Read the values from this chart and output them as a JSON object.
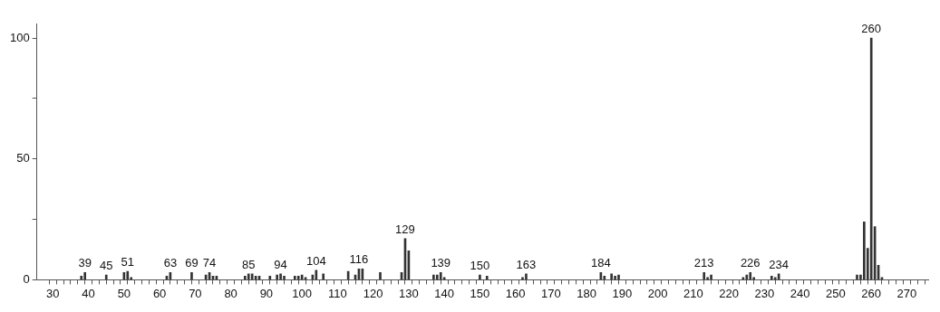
{
  "chart_data": {
    "type": "bar",
    "x": [
      38,
      39,
      45,
      50,
      51,
      52,
      62,
      63,
      69,
      73,
      74,
      75,
      76,
      84,
      85,
      86,
      87,
      88,
      91,
      93,
      94,
      95,
      98,
      99,
      100,
      101,
      103,
      104,
      106,
      113,
      115,
      116,
      117,
      122,
      128,
      129,
      130,
      137,
      138,
      139,
      140,
      150,
      152,
      162,
      163,
      184,
      185,
      187,
      188,
      189,
      213,
      214,
      215,
      224,
      225,
      226,
      227,
      232,
      233,
      234,
      256,
      257,
      258,
      259,
      260,
      261,
      262,
      263
    ],
    "values": [
      1.5,
      3,
      2,
      3,
      3.5,
      1,
      1.5,
      3,
      3,
      2,
      3,
      1.5,
      1.5,
      1.5,
      2.5,
      2.5,
      1.5,
      1.5,
      1.5,
      2,
      2.5,
      1.5,
      1.5,
      1.5,
      2,
      1,
      2,
      4,
      2.5,
      3.5,
      2,
      4.5,
      4.5,
      3,
      3,
      17,
      12,
      2,
      2,
      3,
      1,
      2,
      1.5,
      1,
      2.5,
      3,
      1.5,
      2.5,
      1.5,
      2,
      3,
      1,
      2,
      1,
      2,
      3,
      1,
      1.5,
      1,
      2.5,
      2,
      2,
      24,
      13,
      100,
      22,
      6,
      1
    ],
    "color": "#333333",
    "xlim": [
      25.5,
      276
    ],
    "ylim": [
      0,
      106
    ],
    "yticks": [
      0,
      {
        "value": 25,
        "label": null
      },
      50,
      {
        "value": 75,
        "label": null
      },
      100
    ],
    "xticks": [
      30,
      {
        "value": 32,
        "label": null
      },
      {
        "value": 34,
        "label": null
      },
      {
        "value": 36,
        "label": null
      },
      {
        "value": 38,
        "label": null
      },
      40,
      {
        "value": 42,
        "label": null
      },
      {
        "value": 44,
        "label": null
      },
      {
        "value": 46,
        "label": null
      },
      {
        "value": 48,
        "label": null
      },
      50,
      {
        "value": 52,
        "label": null
      },
      {
        "value": 54,
        "label": null
      },
      {
        "value": 56,
        "label": null
      },
      {
        "value": 58,
        "label": null
      },
      60,
      {
        "value": 62,
        "label": null
      },
      {
        "value": 64,
        "label": null
      },
      {
        "value": 66,
        "label": null
      },
      {
        "value": 68,
        "label": null
      },
      70,
      {
        "value": 72,
        "label": null
      },
      {
        "value": 74,
        "label": null
      },
      {
        "value": 76,
        "label": null
      },
      {
        "value": 78,
        "label": null
      },
      80,
      {
        "value": 82,
        "label": null
      },
      {
        "value": 84,
        "label": null
      },
      {
        "value": 86,
        "label": null
      },
      {
        "value": 88,
        "label": null
      },
      90,
      {
        "value": 92,
        "label": null
      },
      {
        "value": 94,
        "label": null
      },
      {
        "value": 96,
        "label": null
      },
      {
        "value": 98,
        "label": null
      },
      100,
      {
        "value": 102,
        "label": null
      },
      {
        "value": 104,
        "label": null
      },
      {
        "value": 106,
        "label": null
      },
      {
        "value": 108,
        "label": null
      },
      110,
      {
        "value": 112,
        "label": null
      },
      {
        "value": 114,
        "label": null
      },
      {
        "value": 116,
        "label": null
      },
      {
        "value": 118,
        "label": null
      },
      120,
      {
        "value": 122,
        "label": null
      },
      {
        "value": 124,
        "label": null
      },
      {
        "value": 126,
        "label": null
      },
      {
        "value": 128,
        "label": null
      },
      130,
      {
        "value": 132,
        "label": null
      },
      {
        "value": 134,
        "label": null
      },
      {
        "value": 136,
        "label": null
      },
      {
        "value": 138,
        "label": null
      },
      140,
      {
        "value": 142,
        "label": null
      },
      {
        "value": 144,
        "label": null
      },
      {
        "value": 146,
        "label": null
      },
      {
        "value": 148,
        "label": null
      },
      150,
      {
        "value": 152,
        "label": null
      },
      {
        "value": 154,
        "label": null
      },
      {
        "value": 156,
        "label": null
      },
      {
        "value": 158,
        "label": null
      },
      160,
      {
        "value": 162,
        "label": null
      },
      {
        "value": 164,
        "label": null
      },
      {
        "value": 166,
        "label": null
      },
      {
        "value": 168,
        "label": null
      },
      170,
      {
        "value": 172,
        "label": null
      },
      {
        "value": 174,
        "label": null
      },
      {
        "value": 176,
        "label": null
      },
      {
        "value": 178,
        "label": null
      },
      180,
      {
        "value": 182,
        "label": null
      },
      {
        "value": 184,
        "label": null
      },
      {
        "value": 186,
        "label": null
      },
      {
        "value": 188,
        "label": null
      },
      190,
      {
        "value": 192,
        "label": null
      },
      {
        "value": 194,
        "label": null
      },
      {
        "value": 196,
        "label": null
      },
      {
        "value": 198,
        "label": null
      },
      200,
      {
        "value": 202,
        "label": null
      },
      {
        "value": 204,
        "label": null
      },
      {
        "value": 206,
        "label": null
      },
      {
        "value": 208,
        "label": null
      },
      210,
      {
        "value": 212,
        "label": null
      },
      {
        "value": 214,
        "label": null
      },
      {
        "value": 216,
        "label": null
      },
      {
        "value": 218,
        "label": null
      },
      220,
      {
        "value": 222,
        "label": null
      },
      {
        "value": 224,
        "label": null
      },
      {
        "value": 226,
        "label": null
      },
      {
        "value": 228,
        "label": null
      },
      230,
      {
        "value": 232,
        "label": null
      },
      {
        "value": 234,
        "label": null
      },
      {
        "value": 236,
        "label": null
      },
      {
        "value": 238,
        "label": null
      },
      240,
      {
        "value": 242,
        "label": null
      },
      {
        "value": 244,
        "label": null
      },
      {
        "value": 246,
        "label": null
      },
      {
        "value": 248,
        "label": null
      },
      250,
      {
        "value": 252,
        "label": null
      },
      {
        "value": 254,
        "label": null
      },
      {
        "value": 256,
        "label": null
      },
      {
        "value": 258,
        "label": null
      },
      260,
      {
        "value": 262,
        "label": null
      },
      {
        "value": 264,
        "label": null
      },
      {
        "value": 266,
        "label": null
      },
      {
        "value": 268,
        "label": null
      },
      270,
      {
        "value": 272,
        "label": null
      },
      {
        "value": 274,
        "label": null
      }
    ],
    "annotations": [
      {
        "text": "39",
        "x": 39,
        "y": 3
      },
      {
        "text": "45",
        "x": 45,
        "y": 2
      },
      {
        "text": "51",
        "x": 51,
        "y": 3.5
      },
      {
        "text": "63",
        "x": 63,
        "y": 3
      },
      {
        "text": "69",
        "x": 69,
        "y": 3
      },
      {
        "text": "74",
        "x": 74,
        "y": 3
      },
      {
        "text": "85",
        "x": 85,
        "y": 2.5
      },
      {
        "text": "94",
        "x": 94,
        "y": 2.5
      },
      {
        "text": "104",
        "x": 104,
        "y": 4
      },
      {
        "text": "116",
        "x": 116,
        "y": 4.5
      },
      {
        "text": "129",
        "x": 129,
        "y": 17
      },
      {
        "text": "139",
        "x": 139,
        "y": 3
      },
      {
        "text": "150",
        "x": 150,
        "y": 2
      },
      {
        "text": "163",
        "x": 163,
        "y": 2.5
      },
      {
        "text": "184",
        "x": 184,
        "y": 3
      },
      {
        "text": "213",
        "x": 213,
        "y": 3
      },
      {
        "text": "226",
        "x": 226,
        "y": 3
      },
      {
        "text": "234",
        "x": 234,
        "y": 2.5
      },
      {
        "text": "260",
        "x": 260,
        "y": 100
      }
    ],
    "grid": false,
    "legend": false
  }
}
